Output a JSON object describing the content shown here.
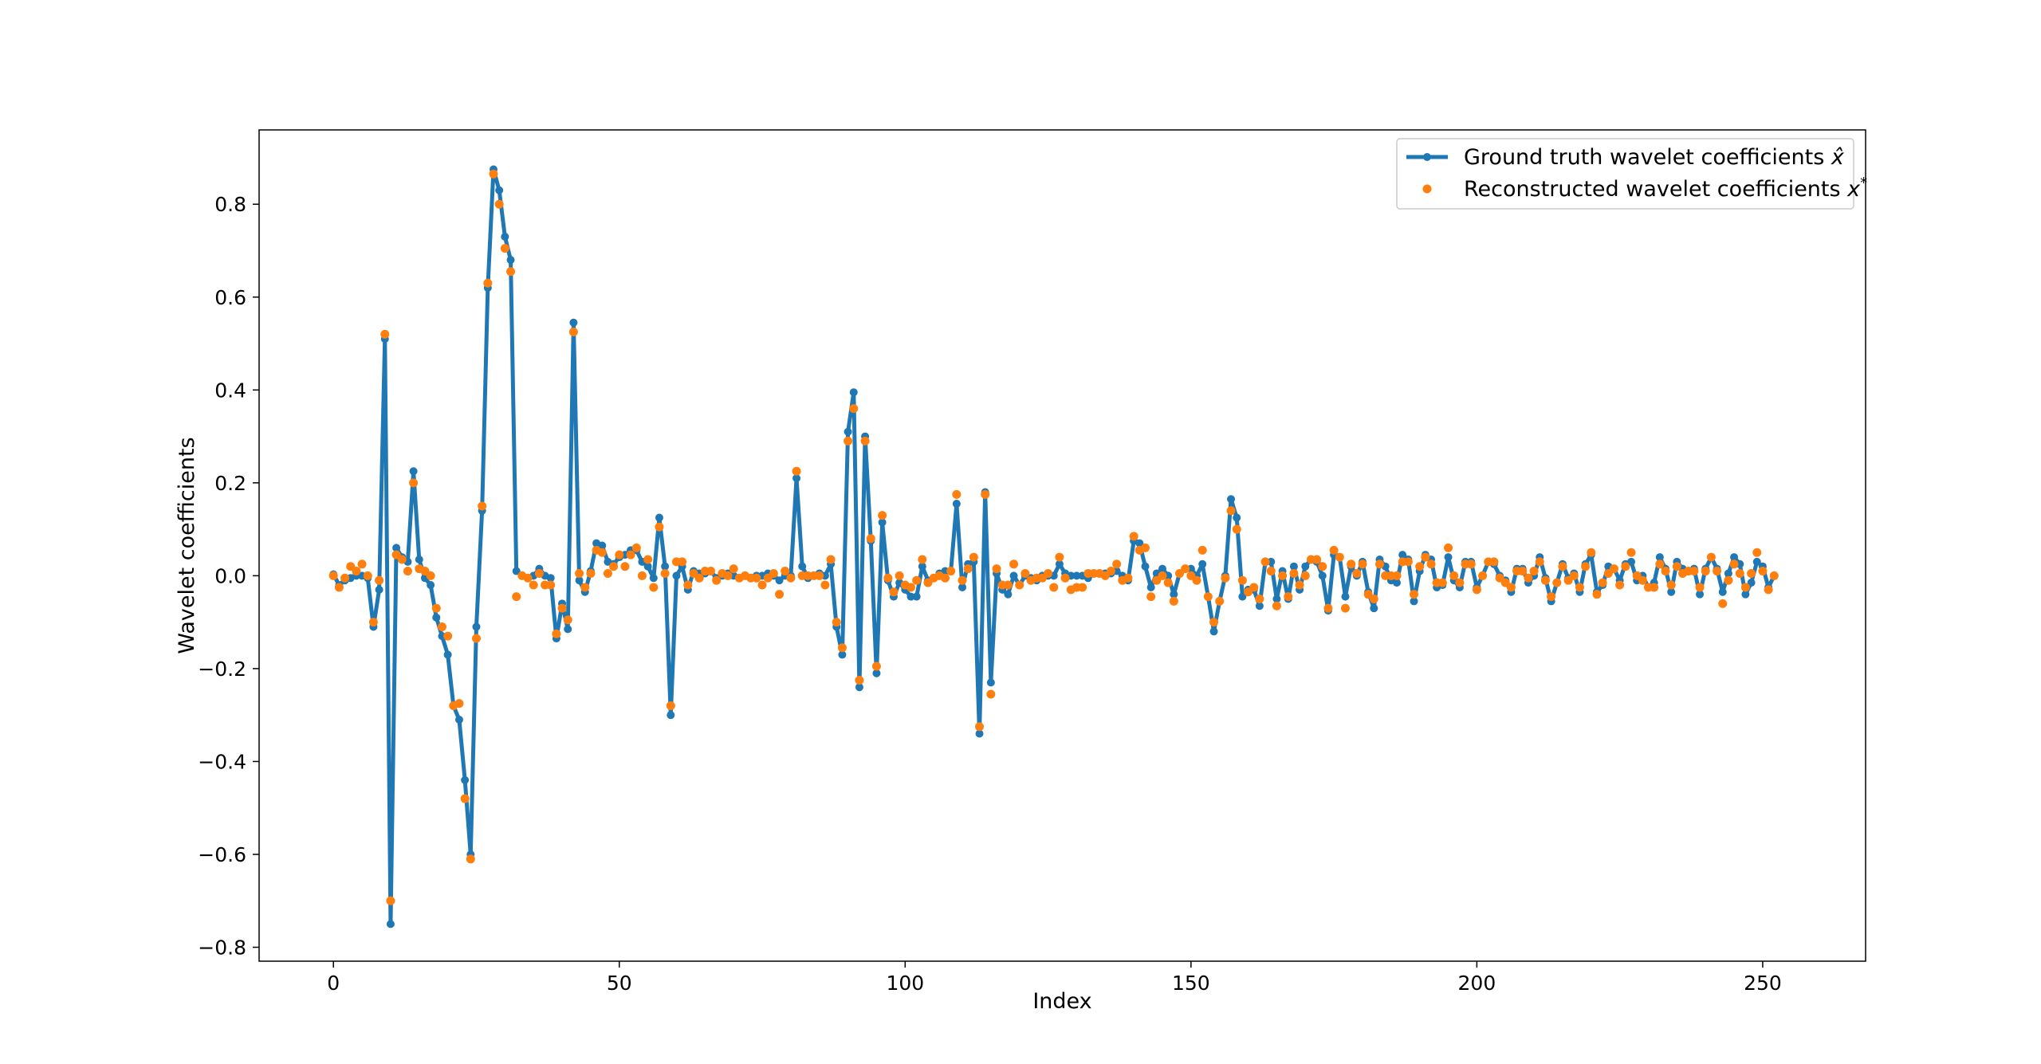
{
  "chart_data": {
    "type": "line",
    "title": "",
    "xlabel": "Index",
    "ylabel": "Wavelet coefficients",
    "xlim": [
      -13,
      268
    ],
    "ylim": [
      -0.83,
      0.96
    ],
    "xticks": [
      0,
      50,
      100,
      150,
      200,
      250
    ],
    "yticks": [
      -0.8,
      -0.6,
      -0.4,
      -0.2,
      0.0,
      0.2,
      0.4,
      0.6,
      0.8
    ],
    "xtick_labels": [
      "0",
      "50",
      "100",
      "150",
      "200",
      "250"
    ],
    "ytick_labels": [
      "−0.8",
      "−0.6",
      "−0.4",
      "−0.2",
      "0.0",
      "0.2",
      "0.4",
      "0.6",
      "0.8"
    ],
    "grid": false,
    "legend_position": "top-right",
    "series": [
      {
        "name": "Ground truth wavelet coefficients x̂",
        "style": "line-with-markers",
        "color": "#1f77b4",
        "values": [
          0.003,
          -0.02,
          -0.01,
          -0.005,
          0.0,
          0.0,
          -0.005,
          -0.11,
          -0.03,
          0.51,
          -0.75,
          0.06,
          0.04,
          0.03,
          0.225,
          0.035,
          -0.005,
          -0.02,
          -0.09,
          -0.13,
          -0.17,
          -0.28,
          -0.31,
          -0.44,
          -0.6,
          -0.11,
          0.14,
          0.62,
          0.875,
          0.83,
          0.73,
          0.68,
          0.01,
          0.0,
          -0.005,
          0.0,
          0.015,
          0.0,
          -0.005,
          -0.135,
          -0.06,
          -0.115,
          0.545,
          -0.01,
          -0.035,
          0.01,
          0.07,
          0.065,
          0.03,
          0.025,
          0.04,
          0.045,
          0.055,
          0.055,
          0.03,
          0.02,
          -0.005,
          0.125,
          0.02,
          -0.3,
          0.0,
          0.02,
          -0.03,
          0.01,
          0.005,
          0.005,
          0.01,
          -0.005,
          0.0,
          0.005,
          0.0,
          -0.005,
          0.0,
          -0.005,
          0.0,
          0.0,
          0.005,
          0.0,
          -0.01,
          0.0,
          0.0,
          0.21,
          0.02,
          -0.005,
          0.0,
          0.005,
          0.0,
          0.025,
          -0.11,
          -0.17,
          0.31,
          0.395,
          -0.24,
          0.3,
          0.075,
          -0.21,
          0.115,
          -0.01,
          -0.045,
          -0.015,
          -0.03,
          -0.045,
          -0.045,
          0.02,
          -0.01,
          -0.005,
          0.005,
          0.01,
          0.01,
          0.155,
          -0.025,
          0.025,
          0.03,
          -0.34,
          0.18,
          -0.23,
          0.005,
          -0.03,
          -0.04,
          0.0,
          -0.02,
          0.0,
          -0.005,
          -0.01,
          0.0,
          0.0,
          0.0,
          0.025,
          0.005,
          0.0,
          0.0,
          0.0,
          -0.005,
          0.005,
          0.005,
          0.005,
          0.005,
          0.01,
          0.0,
          -0.01,
          0.075,
          0.07,
          0.02,
          -0.025,
          0.005,
          0.015,
          0.0,
          -0.04,
          0.005,
          0.015,
          0.015,
          0.0,
          0.025,
          -0.045,
          -0.12,
          -0.055,
          0.0,
          0.165,
          0.125,
          -0.045,
          -0.03,
          -0.03,
          -0.065,
          0.03,
          0.03,
          -0.05,
          0.01,
          -0.05,
          0.02,
          -0.03,
          0.02,
          0.035,
          0.03,
          0.0,
          -0.075,
          0.045,
          0.04,
          -0.045,
          0.02,
          0.0,
          0.03,
          -0.035,
          -0.07,
          0.035,
          0.02,
          -0.01,
          -0.015,
          0.045,
          0.035,
          -0.055,
          0.01,
          0.045,
          0.035,
          -0.025,
          -0.02,
          0.04,
          -0.01,
          -0.025,
          0.03,
          0.03,
          -0.025,
          0.0,
          0.03,
          0.025,
          0.0,
          -0.01,
          -0.035,
          0.015,
          0.015,
          -0.015,
          0.0,
          0.04,
          -0.005,
          -0.055,
          -0.015,
          0.025,
          -0.005,
          0.005,
          -0.035,
          0.025,
          0.045,
          -0.035,
          -0.02,
          0.02,
          0.015,
          -0.01,
          0.025,
          0.03,
          -0.01,
          0.0,
          -0.025,
          -0.015,
          0.04,
          0.015,
          -0.035,
          0.03,
          0.015,
          0.01,
          0.015,
          -0.04,
          0.015,
          0.04,
          0.015,
          -0.035,
          0.005,
          0.04,
          0.025,
          -0.04,
          -0.015,
          0.03,
          0.02,
          -0.025,
          0.0
        ]
      },
      {
        "name": "Reconstructed wavelet coefficients x*",
        "style": "markers",
        "color": "#ff7f0e",
        "values": [
          0.0,
          -0.025,
          -0.005,
          0.02,
          0.01,
          0.025,
          0.0,
          -0.1,
          -0.01,
          0.52,
          -0.7,
          0.045,
          0.035,
          0.01,
          0.2,
          0.015,
          0.01,
          0.0,
          -0.07,
          -0.11,
          -0.13,
          -0.28,
          -0.275,
          -0.48,
          -0.61,
          -0.135,
          0.15,
          0.63,
          0.865,
          0.8,
          0.705,
          0.655,
          -0.045,
          0.0,
          -0.005,
          -0.02,
          0.005,
          -0.02,
          -0.02,
          -0.125,
          -0.07,
          -0.095,
          0.525,
          0.005,
          -0.025,
          0.005,
          0.055,
          0.05,
          0.005,
          0.02,
          0.045,
          0.02,
          0.045,
          0.06,
          0.0,
          0.035,
          -0.025,
          0.105,
          0.005,
          -0.28,
          0.03,
          0.03,
          -0.02,
          0.005,
          -0.005,
          0.01,
          0.01,
          -0.01,
          0.005,
          0.0,
          0.015,
          -0.005,
          0.0,
          -0.005,
          -0.005,
          -0.02,
          -0.005,
          0.005,
          -0.04,
          0.01,
          -0.005,
          0.225,
          0.0,
          0.0,
          0.0,
          0.0,
          -0.02,
          0.035,
          -0.1,
          -0.155,
          0.29,
          0.36,
          -0.225,
          0.29,
          0.08,
          -0.195,
          0.13,
          -0.005,
          -0.035,
          0.0,
          -0.02,
          -0.025,
          -0.01,
          0.035,
          -0.015,
          -0.005,
          0.0,
          -0.005,
          0.01,
          0.175,
          -0.01,
          0.015,
          0.04,
          -0.325,
          0.175,
          -0.255,
          0.015,
          -0.02,
          -0.02,
          0.025,
          -0.02,
          0.005,
          -0.01,
          -0.005,
          -0.005,
          0.005,
          -0.025,
          0.04,
          -0.005,
          -0.03,
          -0.025,
          -0.025,
          0.005,
          0.005,
          0.005,
          0.0,
          0.01,
          0.025,
          -0.01,
          -0.005,
          0.085,
          0.055,
          0.06,
          -0.045,
          -0.01,
          0.0,
          -0.015,
          -0.055,
          0.005,
          0.015,
          0.0,
          -0.01,
          0.055,
          -0.045,
          -0.1,
          -0.055,
          -0.005,
          0.14,
          0.1,
          -0.01,
          -0.035,
          -0.025,
          -0.05,
          0.03,
          0.01,
          -0.065,
          0.0,
          -0.045,
          0.005,
          -0.02,
          0.0,
          0.035,
          0.035,
          0.02,
          -0.07,
          0.055,
          0.04,
          -0.07,
          0.025,
          0.005,
          0.025,
          -0.04,
          -0.05,
          0.025,
          0.0,
          0.0,
          0.0,
          0.03,
          0.03,
          -0.04,
          0.02,
          0.04,
          0.025,
          -0.015,
          -0.015,
          0.06,
          0.0,
          -0.015,
          0.025,
          0.025,
          -0.03,
          0.0,
          0.03,
          0.03,
          -0.005,
          -0.015,
          -0.025,
          0.01,
          0.01,
          -0.005,
          0.01,
          0.03,
          -0.01,
          -0.045,
          -0.015,
          0.02,
          -0.01,
          0.0,
          -0.025,
          0.02,
          0.05,
          -0.04,
          -0.015,
          0.005,
          0.015,
          -0.02,
          0.02,
          0.05,
          0.0,
          -0.01,
          -0.025,
          -0.025,
          0.025,
          0.01,
          -0.02,
          0.02,
          0.005,
          0.01,
          0.01,
          -0.025,
          0.01,
          0.04,
          0.01,
          -0.06,
          -0.01,
          0.025,
          0.005,
          -0.025,
          0.005,
          0.05,
          0.01,
          -0.03,
          0.0
        ]
      }
    ]
  },
  "legend": {
    "item1_prefix": "Ground truth wavelet coefficients ",
    "item1_symbol": "x̂",
    "item2_prefix": "Reconstructed wavelet coefficients ",
    "item2_symbol": "x",
    "item2_superscript": "*"
  }
}
